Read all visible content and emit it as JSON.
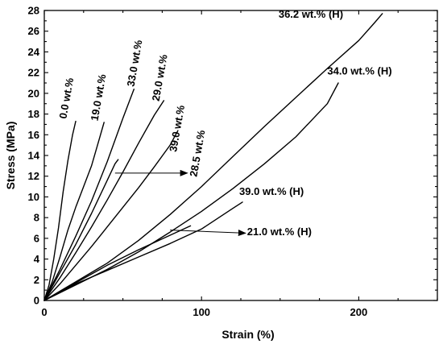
{
  "chart_data": {
    "type": "line",
    "title": "",
    "xlabel": "Strain (%)",
    "ylabel": "Stress (MPa)",
    "xlim": [
      0,
      250
    ],
    "ylim": [
      0,
      28
    ],
    "xticks": [
      0,
      100,
      200
    ],
    "yticks": [
      0,
      2,
      4,
      6,
      8,
      10,
      12,
      14,
      16,
      18,
      20,
      22,
      24,
      26,
      28
    ],
    "xtick_labels": [
      "0",
      "100",
      "200"
    ],
    "ytick_labels": [
      "0",
      "2",
      "4",
      "6",
      "8",
      "10",
      "12",
      "14",
      "16",
      "18",
      "20",
      "22",
      "24",
      "26",
      "28"
    ],
    "grid": false,
    "series": [
      {
        "name": "0.0 wt.%",
        "x": [
          0,
          3,
          6,
          9,
          12,
          15,
          18,
          20
        ],
        "y": [
          0,
          1.5,
          4,
          7,
          10.5,
          13.5,
          16,
          17.3
        ]
      },
      {
        "name": "19.0 wt.%",
        "x": [
          0,
          5,
          10,
          15,
          20,
          25,
          30,
          35,
          38
        ],
        "y": [
          0,
          1.8,
          4.2,
          6.8,
          9,
          11,
          13,
          15.6,
          17.2
        ]
      },
      {
        "name": "33.0 wt.%",
        "x": [
          0,
          10,
          20,
          30,
          40,
          50,
          57
        ],
        "y": [
          0,
          3,
          6.2,
          9.6,
          13.4,
          17.6,
          20.4
        ]
      },
      {
        "name": "29.0 wt.%",
        "x": [
          0,
          10,
          20,
          30,
          40,
          50,
          60,
          70,
          76
        ],
        "y": [
          0,
          2.2,
          4.6,
          7.1,
          9.7,
          12.4,
          15.2,
          17.9,
          19.3
        ]
      },
      {
        "name": "28.5 wt.%",
        "x": [
          0,
          10,
          20,
          30,
          40,
          45,
          47
        ],
        "y": [
          0,
          2.7,
          5.4,
          8.4,
          11.6,
          13.2,
          13.6
        ]
      },
      {
        "name": "39.0 wt.%",
        "x": [
          0,
          10,
          20,
          30,
          40,
          50,
          60,
          70,
          80,
          85
        ],
        "y": [
          0,
          1.6,
          3.4,
          5.2,
          7.1,
          9,
          10.9,
          12.9,
          15,
          16.4
        ]
      },
      {
        "name": "36.2 wt.% (H)",
        "x": [
          0,
          20,
          40,
          60,
          80,
          100,
          120,
          140,
          160,
          180,
          200,
          210,
          215
        ],
        "y": [
          0,
          1.8,
          3.6,
          5.8,
          8.3,
          11,
          13.9,
          16.8,
          19.6,
          22.4,
          25.1,
          26.8,
          27.7
        ]
      },
      {
        "name": "34.0 wt.% (H)",
        "x": [
          0,
          20,
          40,
          60,
          80,
          100,
          120,
          140,
          160,
          180,
          187
        ],
        "y": [
          0,
          1.5,
          3,
          4.7,
          6.6,
          8.6,
          10.8,
          13.2,
          15.8,
          19,
          21
        ]
      },
      {
        "name": "39.0 wt.% (H)",
        "x": [
          0,
          20,
          40,
          60,
          80,
          100,
          120,
          126
        ],
        "y": [
          0,
          1.6,
          2.9,
          4.2,
          5.5,
          6.9,
          8.9,
          9.5
        ]
      },
      {
        "name": "21.0 wt.% (H)",
        "x": [
          0,
          20,
          40,
          60,
          80,
          93
        ],
        "y": [
          0,
          1.7,
          3.4,
          4.9,
          6.3,
          7.2
        ]
      }
    ],
    "annotations": [
      {
        "text": "0.0 wt.%",
        "x": 14,
        "y": 17.5,
        "rotate": -80
      },
      {
        "text": "19.0 wt.%",
        "x": 34,
        "y": 17.3,
        "rotate": -80
      },
      {
        "text": "33.0 wt.%",
        "x": 57,
        "y": 20.6,
        "rotate": -80
      },
      {
        "text": "29.0 wt.%",
        "x": 73,
        "y": 19.2,
        "rotate": -80
      },
      {
        "text": "39.0 wt.%",
        "x": 84,
        "y": 14.3,
        "rotate": -80
      },
      {
        "text": "28.5 wt.%",
        "x": 97,
        "y": 11.9,
        "rotate": -80
      },
      {
        "text": "36.2 wt.% (H)",
        "x": 149,
        "y": 27.3,
        "rotate": 0
      },
      {
        "text": "34.0 wt.% (H)",
        "x": 180,
        "y": 21.8,
        "rotate": 0
      },
      {
        "text": "39.0 wt.% (H)",
        "x": 124,
        "y": 10.2,
        "rotate": 0
      },
      {
        "text": "21.0 wt.% (H)",
        "x": 129,
        "y": 6.3,
        "rotate": 0
      }
    ],
    "arrows": [
      {
        "from": [
          45,
          12.3
        ],
        "to": [
          91,
          12.3
        ]
      },
      {
        "from": [
          80,
          6.8
        ],
        "to": [
          128,
          6.5
        ]
      }
    ]
  }
}
